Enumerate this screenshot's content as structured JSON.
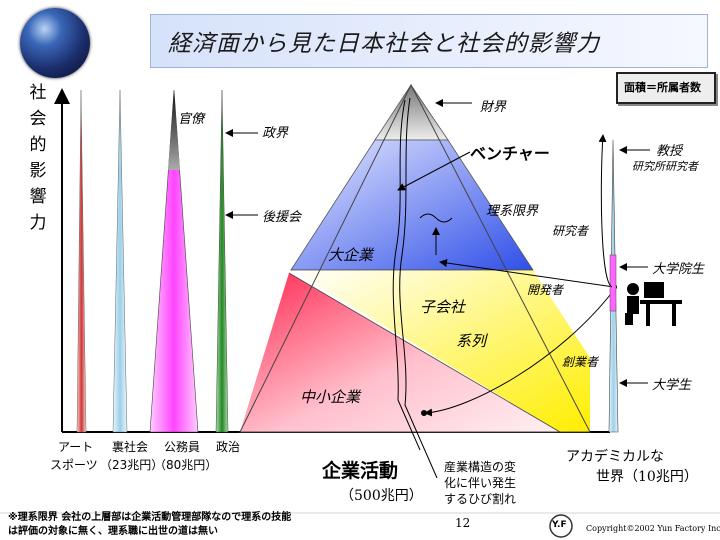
{
  "title": "経済面から見た日本社会と社会的影響力",
  "legend_note": "面積＝所属者数",
  "y_axis_label": "社会的影響力",
  "small_peaks": {
    "labels": [
      "官僚",
      "政界",
      "後援会"
    ],
    "bottom_art": "アート",
    "bottom_art2": "スポーツ",
    "bottom_ura": "裏社会",
    "bottom_ura_amount": "（23兆円）",
    "bottom_koumuin": "公務員",
    "bottom_koumuin_amount": "（80兆円）",
    "bottom_seiji": "政治"
  },
  "pyramid": {
    "zaikai": "財界",
    "venture": "ベンチャー",
    "rikei_genkai": "理系限界",
    "kenkyusha": "研究者",
    "daikigyo": "大企業",
    "kogaisha": "子会社",
    "keiretsu": "系列",
    "kaihatsusha": "開発者",
    "sogyosha": "創業者",
    "chusho": "中小企業",
    "kigyo_katsudo": "企業活動",
    "kigyo_amount": "（500兆円）",
    "split_note_1": "産業構造の変",
    "split_note_2": "化に伴い発生",
    "split_note_3": "するひび割れ"
  },
  "academia": {
    "kyoju": "教授",
    "kenkyujo": "研究所研究者",
    "daigakuinsei": "大学院生",
    "daigakusei": "大学生",
    "title_line1": "アカデミカルな",
    "title_line2": "世界（10兆円）"
  },
  "footer": {
    "note_line1": "※理系限界 会社の上層部は企業活動管理部隊なので理系の技能",
    "note_line2": "は評価の対象に無く、理系職に出世の道は無い",
    "page_number": "12",
    "copyright": "Copyright©2002 Yun Factory Inc.",
    "logo_text": "Y.F"
  },
  "colors": {
    "title_bg": "#d6e2fa",
    "pink_spire": "#ff66ff",
    "green_spire": "#44aa44",
    "blue_band": "#3355ee",
    "red_band": "#ff3355",
    "yellow_band": "#ffee00"
  }
}
